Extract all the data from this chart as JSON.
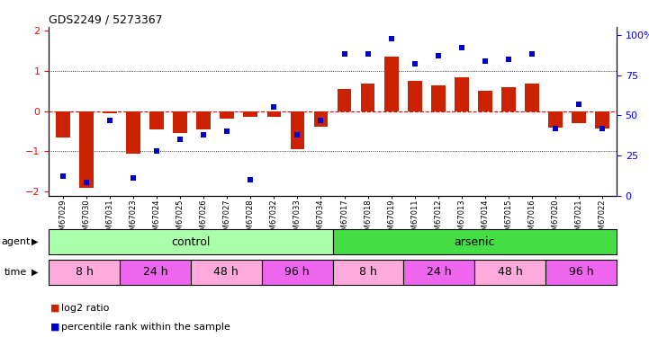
{
  "title": "GDS2249 / 5273367",
  "samples": [
    "GSM67029",
    "GSM67030",
    "GSM67031",
    "GSM67023",
    "GSM67024",
    "GSM67025",
    "GSM67026",
    "GSM67027",
    "GSM67028",
    "GSM67032",
    "GSM67033",
    "GSM67034",
    "GSM67017",
    "GSM67018",
    "GSM67019",
    "GSM67011",
    "GSM67012",
    "GSM67013",
    "GSM67014",
    "GSM67015",
    "GSM67016",
    "GSM67020",
    "GSM67021",
    "GSM67022"
  ],
  "log2_ratio": [
    -0.65,
    -1.9,
    -0.05,
    -1.05,
    -0.45,
    -0.55,
    -0.45,
    -0.18,
    -0.15,
    -0.15,
    -0.95,
    -0.38,
    0.55,
    0.7,
    1.35,
    0.75,
    0.65,
    0.85,
    0.5,
    0.6,
    0.68,
    -0.4,
    -0.3,
    -0.42
  ],
  "percentile": [
    12,
    8,
    47,
    11,
    28,
    35,
    38,
    40,
    10,
    55,
    38,
    47,
    88,
    88,
    98,
    82,
    87,
    92,
    84,
    85,
    88,
    42,
    57,
    42
  ],
  "agent_groups": [
    {
      "label": "control",
      "start": 0,
      "end": 12,
      "color": "#AAFFAA"
    },
    {
      "label": "arsenic",
      "start": 12,
      "end": 24,
      "color": "#44DD44"
    }
  ],
  "time_groups": [
    {
      "label": "8 h",
      "start": 0,
      "end": 3,
      "color": "#FFAADD"
    },
    {
      "label": "24 h",
      "start": 3,
      "end": 6,
      "color": "#EE66EE"
    },
    {
      "label": "48 h",
      "start": 6,
      "end": 9,
      "color": "#FFAADD"
    },
    {
      "label": "96 h",
      "start": 9,
      "end": 12,
      "color": "#EE66EE"
    },
    {
      "label": "8 h",
      "start": 12,
      "end": 15,
      "color": "#FFAADD"
    },
    {
      "label": "24 h",
      "start": 15,
      "end": 18,
      "color": "#EE66EE"
    },
    {
      "label": "48 h",
      "start": 18,
      "end": 21,
      "color": "#FFAADD"
    },
    {
      "label": "96 h",
      "start": 21,
      "end": 24,
      "color": "#EE66EE"
    }
  ],
  "bar_color": "#CC2200",
  "dot_color": "#0000CC",
  "ylim_left": [
    -2.1,
    2.1
  ],
  "yticks_left": [
    -2,
    -1,
    0,
    1,
    2
  ],
  "ylim_right": [
    0,
    105
  ],
  "yticks_right": [
    0,
    25,
    50,
    75,
    100
  ],
  "hlines": [
    -1,
    0,
    1
  ],
  "n_control": 12,
  "n_total": 24
}
